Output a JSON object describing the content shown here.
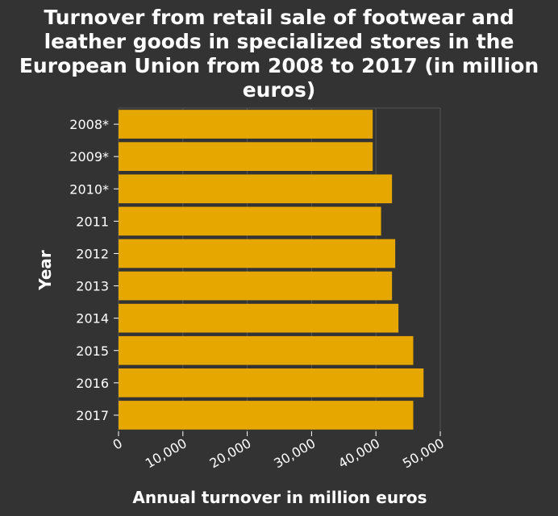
{
  "chart_data": {
    "type": "bar",
    "orientation": "horizontal",
    "title_lines": [
      "Turnover from retail sale of footwear and",
      "leather goods in specialized stores in the",
      "European Union from 2008 to 2017 (in million",
      "euros)"
    ],
    "xlabel": "Annual turnover in million euros",
    "ylabel": "Year",
    "categories": [
      "2008*",
      "2009*",
      "2010*",
      "2011",
      "2012",
      "2013",
      "2014",
      "2015",
      "2016",
      "2017"
    ],
    "values": [
      39500,
      39500,
      42500,
      40800,
      43000,
      42500,
      43500,
      45800,
      47400,
      45800
    ],
    "xlim": [
      0,
      50000
    ],
    "xticks": [
      0,
      10000,
      20000,
      30000,
      40000,
      50000
    ],
    "xtick_labels": [
      "0",
      "10,000",
      "20,000",
      "30,000",
      "40,000",
      "50,000"
    ],
    "grid": true,
    "colors": {
      "bar": "#e6a800",
      "background": "#333333",
      "grid": "#555555",
      "text": "#ffffff"
    }
  }
}
